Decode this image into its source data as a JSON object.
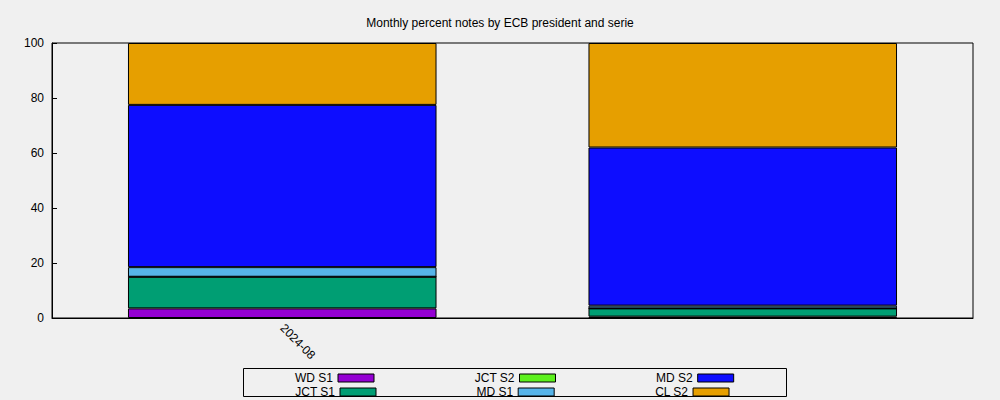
{
  "chart_data": {
    "type": "bar",
    "title": "Monthly percent notes by ECB president and serie",
    "categories": [
      "2024-08",
      null
    ],
    "series": [
      {
        "name": "WD S1",
        "color": "#9400d3",
        "values": [
          3.5,
          0.5
        ]
      },
      {
        "name": "JCT S1",
        "color": "#009e73",
        "values": [
          11.5,
          3
        ]
      },
      {
        "name": "JCT S2",
        "color": "#5cf01c",
        "values": [
          0,
          0
        ]
      },
      {
        "name": "MD S1",
        "color": "#56b4e9",
        "values": [
          3.5,
          1
        ]
      },
      {
        "name": "MD S2",
        "color": "#0d0dff",
        "values": [
          59,
          57.5
        ]
      },
      {
        "name": "CL S2",
        "color": "#e69f00",
        "values": [
          22.5,
          38
        ]
      }
    ],
    "ylim": [
      0,
      100
    ],
    "yticks": [
      0,
      20,
      40,
      60,
      80,
      100
    ],
    "stacked": true,
    "legend": "bottom",
    "grid": false
  }
}
